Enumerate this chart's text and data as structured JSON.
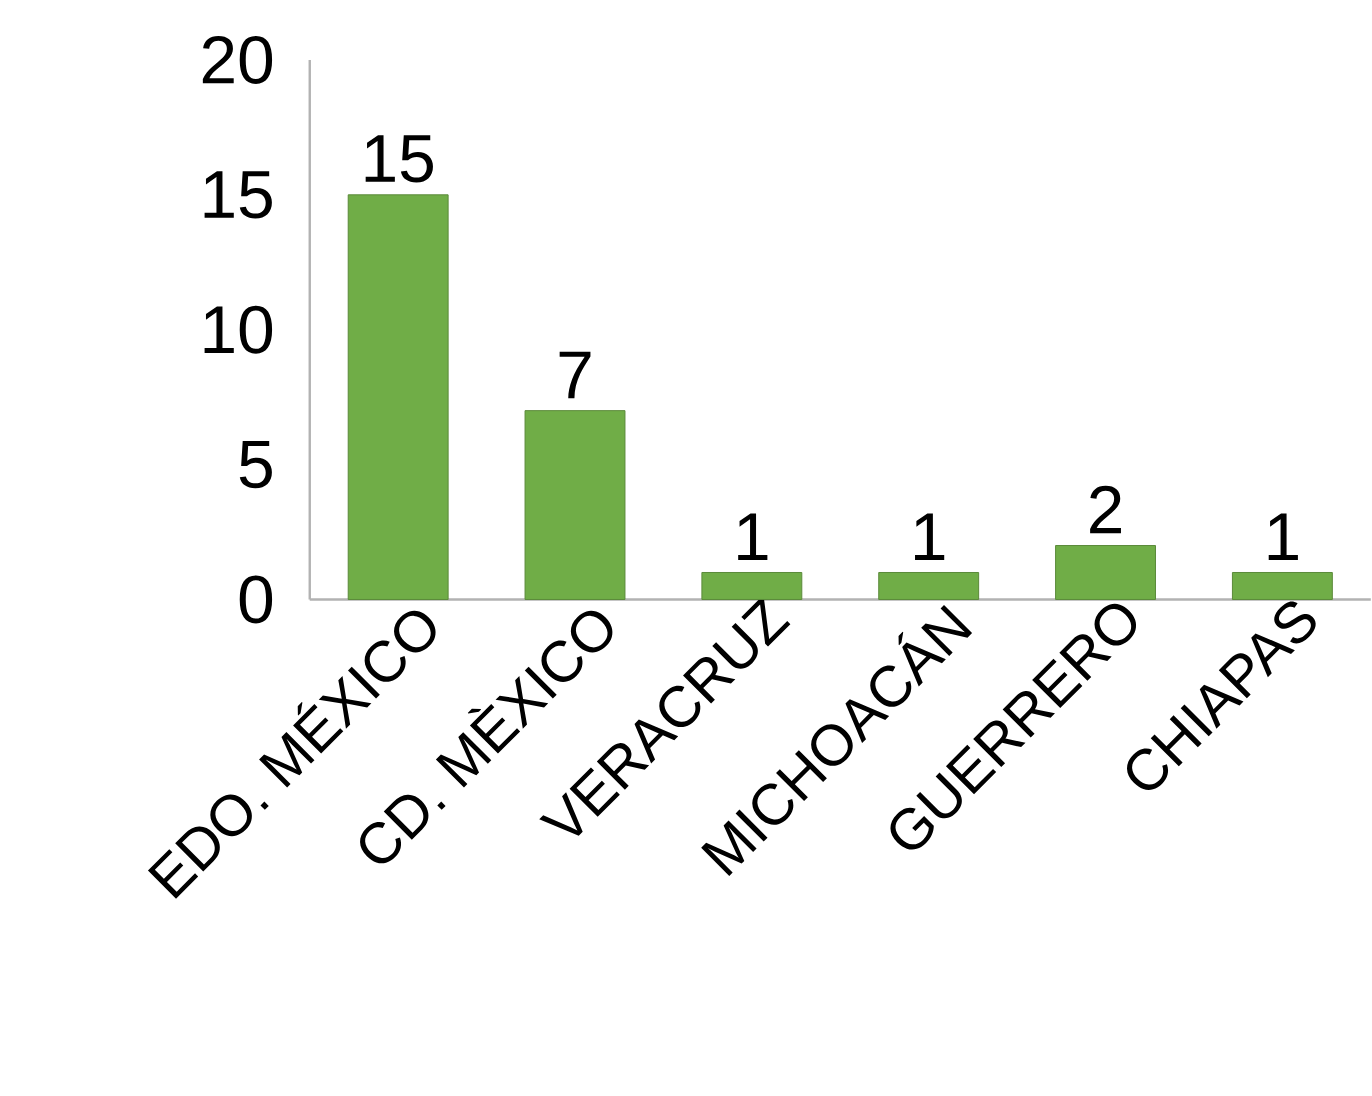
{
  "chart_data": {
    "type": "bar",
    "categories": [
      "EDO. MÉXICO",
      "CD. MÈXICO",
      "VERACRUZ",
      "MICHOACÁN",
      "GUERRERO",
      "CHIAPAS"
    ],
    "values": [
      15,
      7,
      1,
      1,
      2,
      1
    ],
    "color": "#70ad47",
    "ylim": [
      0,
      20
    ],
    "yticks": [
      0,
      5,
      10,
      15,
      20
    ],
    "data_labels": true
  }
}
